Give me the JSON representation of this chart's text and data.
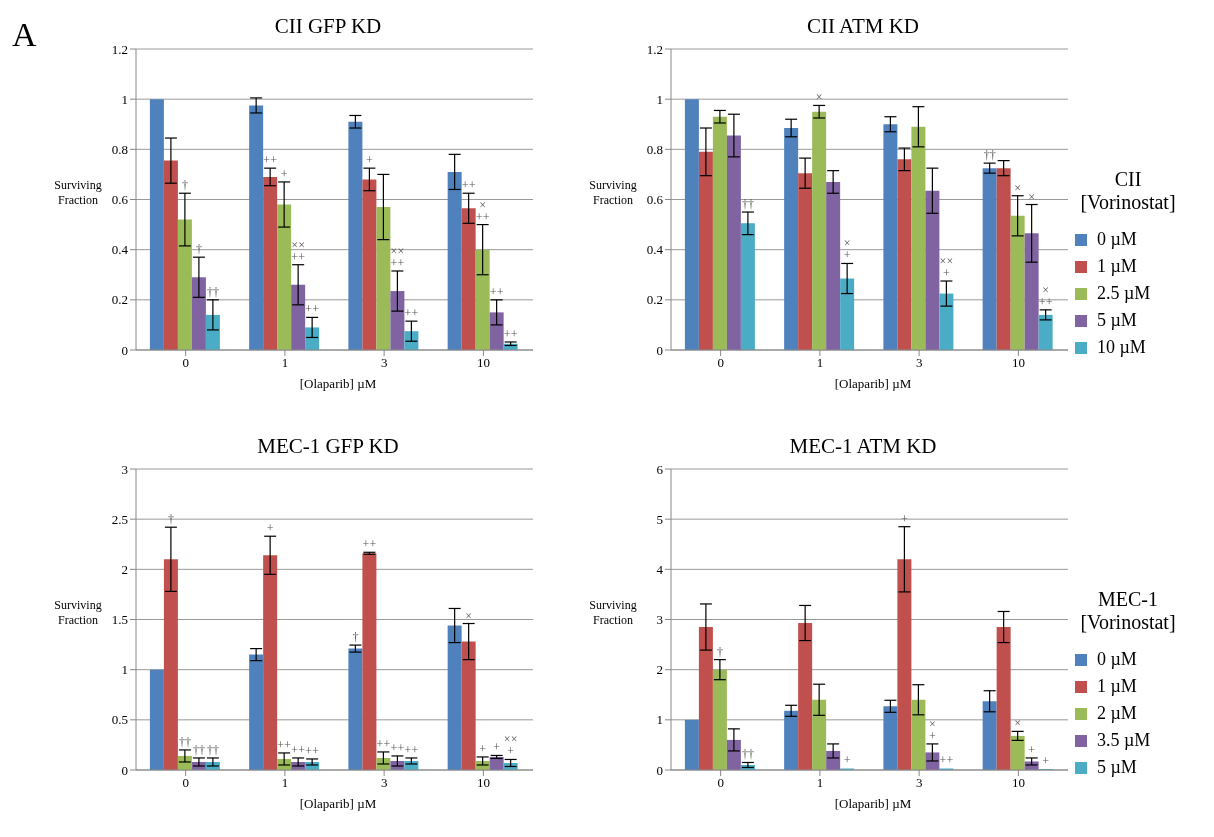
{
  "chart_data": [
    {
      "type": "bar",
      "title": "CII GFP KD",
      "xlabel": "[Olaparib] µM",
      "ylabel": "Surviving Fraction",
      "annotations": [
        "A"
      ],
      "categories": [
        "0",
        "1",
        "3",
        "10"
      ],
      "ylim": [
        0,
        1.2
      ],
      "yticks": [
        0,
        0.2,
        0.4,
        0.6,
        0.8,
        1,
        1.2
      ],
      "grid": "y",
      "legend": false,
      "series": [
        {
          "color": "#4f81bd",
          "values": [
            1.0,
            0.975,
            0.91,
            0.71
          ],
          "errors": [
            null,
            0.03,
            0.025,
            0.07
          ],
          "value_labels": [
            null,
            null,
            null,
            null
          ]
        },
        {
          "color": "#c0504d",
          "values": [
            0.755,
            0.69,
            0.68,
            0.565
          ],
          "errors": [
            0.09,
            0.035,
            0.045,
            0.06
          ],
          "value_labels": [
            null,
            "++",
            "+",
            "++"
          ]
        },
        {
          "color": "#9bbb59",
          "values": [
            0.52,
            0.58,
            0.57,
            0.4
          ],
          "errors": [
            0.105,
            0.09,
            0.13,
            0.1
          ],
          "value_labels": [
            "†",
            "+",
            null,
            "×\n++"
          ]
        },
        {
          "color": "#8064a2",
          "values": [
            0.29,
            0.26,
            0.235,
            0.15
          ],
          "errors": [
            0.08,
            0.08,
            0.08,
            0.05
          ],
          "value_labels": [
            "†",
            "××\n++",
            "××\n++",
            "++"
          ]
        },
        {
          "color": "#4bacc6",
          "values": [
            0.14,
            0.09,
            0.075,
            0.025
          ],
          "errors": [
            0.06,
            0.04,
            0.04,
            0.007
          ],
          "value_labels": [
            "††",
            "++",
            "++",
            "++"
          ]
        }
      ]
    },
    {
      "type": "bar",
      "title": "CII ATM KD",
      "xlabel": "[Olaparib] µM",
      "ylabel": "Surviving Fraction",
      "legend_title": "CII\n[Vorinostat]",
      "categories": [
        "0",
        "1",
        "3",
        "10"
      ],
      "ylim": [
        0,
        1.2
      ],
      "yticks": [
        0,
        0.2,
        0.4,
        0.6,
        0.8,
        1,
        1.2
      ],
      "grid": "y",
      "legend": "right",
      "series": [
        {
          "name": "0 µM",
          "color": "#4f81bd",
          "values": [
            1.0,
            0.885,
            0.9,
            0.725
          ],
          "errors": [
            null,
            0.035,
            0.03,
            0.02
          ],
          "value_labels": [
            null,
            null,
            null,
            "††"
          ]
        },
        {
          "name": "1 µM",
          "color": "#c0504d",
          "values": [
            0.79,
            0.705,
            0.76,
            0.725
          ],
          "errors": [
            0.095,
            0.06,
            0.045,
            0.03
          ],
          "value_labels": [
            null,
            null,
            null,
            null
          ]
        },
        {
          "name": "2.5 µM",
          "color": "#9bbb59",
          "values": [
            0.93,
            0.95,
            0.89,
            0.535
          ],
          "errors": [
            0.025,
            0.025,
            0.08,
            0.08
          ],
          "value_labels": [
            null,
            "×",
            null,
            "×"
          ]
        },
        {
          "name": "5 µM",
          "color": "#8064a2",
          "values": [
            0.855,
            0.67,
            0.635,
            0.465
          ],
          "errors": [
            0.085,
            0.045,
            0.09,
            0.115
          ],
          "value_labels": [
            null,
            null,
            null,
            "×"
          ]
        },
        {
          "name": "10 µM",
          "color": "#4bacc6",
          "values": [
            0.505,
            0.285,
            0.225,
            0.14
          ],
          "errors": [
            0.045,
            0.06,
            0.05,
            0.02
          ],
          "value_labels": [
            "††",
            "×\n+",
            "××\n+",
            "×\n++"
          ]
        }
      ]
    },
    {
      "type": "bar",
      "title": "MEC-1 GFP KD",
      "xlabel": "[Olaparib] µM",
      "ylabel": "Surviving Fraction",
      "categories": [
        "0",
        "1",
        "3",
        "10"
      ],
      "ylim": [
        0,
        3
      ],
      "yticks": [
        0,
        0.5,
        1,
        1.5,
        2,
        2.5,
        3
      ],
      "grid": "y",
      "legend": false,
      "series": [
        {
          "color": "#4f81bd",
          "values": [
            1.0,
            1.15,
            1.21,
            1.44
          ],
          "errors": [
            null,
            0.06,
            0.035,
            0.17
          ],
          "value_labels": [
            null,
            null,
            "†",
            null
          ]
        },
        {
          "color": "#c0504d",
          "values": [
            2.1,
            2.14,
            2.16,
            1.28
          ],
          "errors": [
            0.32,
            0.19,
            0.01,
            0.18
          ],
          "value_labels": [
            "†",
            "+",
            "++",
            "×"
          ]
        },
        {
          "color": "#9bbb59",
          "values": [
            0.14,
            0.11,
            0.12,
            0.09
          ],
          "errors": [
            0.06,
            0.06,
            0.06,
            0.04
          ],
          "value_labels": [
            "††",
            "++",
            "++",
            "+"
          ]
        },
        {
          "color": "#8064a2",
          "values": [
            0.08,
            0.08,
            0.09,
            0.13
          ],
          "errors": [
            0.04,
            0.04,
            0.05,
            0.015
          ],
          "value_labels": [
            "††",
            "++",
            "++",
            "+"
          ]
        },
        {
          "color": "#4bacc6",
          "values": [
            0.08,
            0.08,
            0.09,
            0.07
          ],
          "errors": [
            0.04,
            0.03,
            0.03,
            0.035
          ],
          "value_labels": [
            "††",
            "++",
            "++",
            "××\n+"
          ]
        }
      ]
    },
    {
      "type": "bar",
      "title": "MEC-1 ATM KD",
      "xlabel": "[Olaparib] µM",
      "ylabel": "Surviving Fraction",
      "legend_title": "MEC-1\n[Vorinostat]",
      "categories": [
        "0",
        "1",
        "3",
        "10"
      ],
      "ylim": [
        0,
        6
      ],
      "yticks": [
        0,
        1,
        2,
        3,
        4,
        5,
        6
      ],
      "grid": "y",
      "legend": "right",
      "series": [
        {
          "name": "0 µM",
          "color": "#4f81bd",
          "values": [
            1.0,
            1.18,
            1.27,
            1.37
          ],
          "errors": [
            null,
            0.11,
            0.12,
            0.21
          ],
          "value_labels": [
            null,
            null,
            null,
            null
          ]
        },
        {
          "name": "1 µM",
          "color": "#c0504d",
          "values": [
            2.85,
            2.93,
            4.2,
            2.85
          ],
          "errors": [
            0.46,
            0.35,
            0.65,
            0.31
          ],
          "value_labels": [
            null,
            null,
            "+",
            null
          ]
        },
        {
          "name": "2 µM",
          "color": "#9bbb59",
          "values": [
            2.0,
            1.4,
            1.4,
            0.68
          ],
          "errors": [
            0.2,
            0.31,
            0.3,
            0.09
          ],
          "value_labels": [
            "†",
            null,
            null,
            "×"
          ]
        },
        {
          "name": "3.5 µM",
          "color": "#8064a2",
          "values": [
            0.6,
            0.38,
            0.35,
            0.17
          ],
          "errors": [
            0.22,
            0.14,
            0.17,
            0.07
          ],
          "value_labels": [
            null,
            null,
            "×\n+",
            "+"
          ]
        },
        {
          "name": "5 µM",
          "color": "#4bacc6",
          "values": [
            0.1,
            0.03,
            0.03,
            0.02
          ],
          "errors": [
            0.05,
            null,
            null,
            null
          ],
          "value_labels": [
            "††",
            "+",
            "++",
            "+"
          ]
        }
      ]
    }
  ]
}
